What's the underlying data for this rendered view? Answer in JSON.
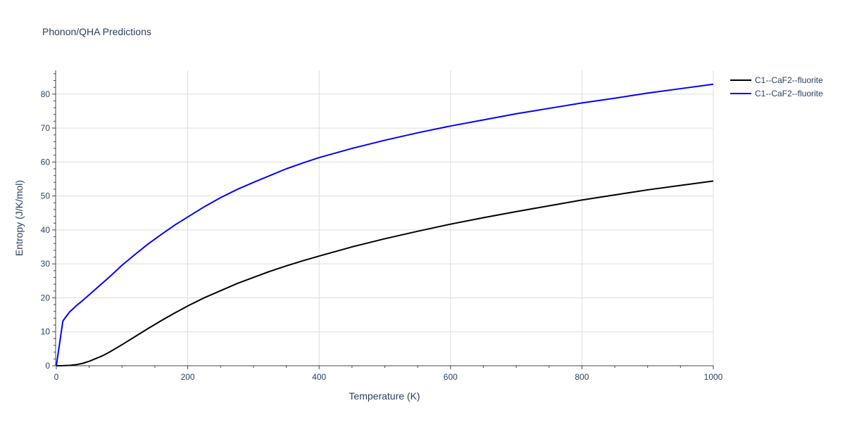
{
  "chart_data": {
    "type": "line",
    "title": "Phonon/QHA Predictions",
    "xlabel": "Temperature (K)",
    "ylabel": "Entropy (J/K/mol)",
    "xlim": [
      0,
      1000
    ],
    "ylim": [
      0,
      87
    ],
    "xticks": [
      0,
      200,
      400,
      600,
      800,
      1000
    ],
    "yticks": [
      0,
      10,
      20,
      30,
      40,
      50,
      60,
      70,
      80
    ],
    "grid": true,
    "legend_position": "top-right",
    "series": [
      {
        "name": "C1--CaF2--fluorite",
        "color": "#000000",
        "x": [
          0,
          10,
          20,
          30,
          40,
          50,
          60,
          70,
          80,
          100,
          120,
          140,
          160,
          180,
          200,
          225,
          250,
          275,
          300,
          325,
          350,
          375,
          400,
          450,
          500,
          550,
          600,
          650,
          700,
          750,
          800,
          850,
          900,
          950,
          1000
        ],
        "y": [
          0,
          0.02,
          0.1,
          0.3,
          0.7,
          1.3,
          2.1,
          2.9,
          3.9,
          6.2,
          8.6,
          11.0,
          13.3,
          15.5,
          17.6,
          20.0,
          22.1,
          24.2,
          26.0,
          27.8,
          29.4,
          30.9,
          32.3,
          35.0,
          37.4,
          39.6,
          41.7,
          43.6,
          45.4,
          47.1,
          48.8,
          50.3,
          51.8,
          53.1,
          54.4
        ]
      },
      {
        "name": "C1--CaF2--fluorite",
        "color": "#0000ff",
        "x": [
          0,
          10,
          20,
          30,
          40,
          60,
          80,
          100,
          120,
          140,
          160,
          180,
          200,
          225,
          250,
          275,
          300,
          325,
          350,
          375,
          400,
          450,
          500,
          550,
          600,
          650,
          700,
          750,
          800,
          850,
          900,
          950,
          1000
        ],
        "y": [
          0,
          13.2,
          15.8,
          17.6,
          19.2,
          22.6,
          26.0,
          29.6,
          32.8,
          35.9,
          38.7,
          41.4,
          43.8,
          46.8,
          49.5,
          51.9,
          54.0,
          56.0,
          58.0,
          59.7,
          61.3,
          64.0,
          66.4,
          68.6,
          70.6,
          72.4,
          74.2,
          75.8,
          77.4,
          78.8,
          80.3,
          81.6,
          82.9
        ]
      }
    ]
  }
}
